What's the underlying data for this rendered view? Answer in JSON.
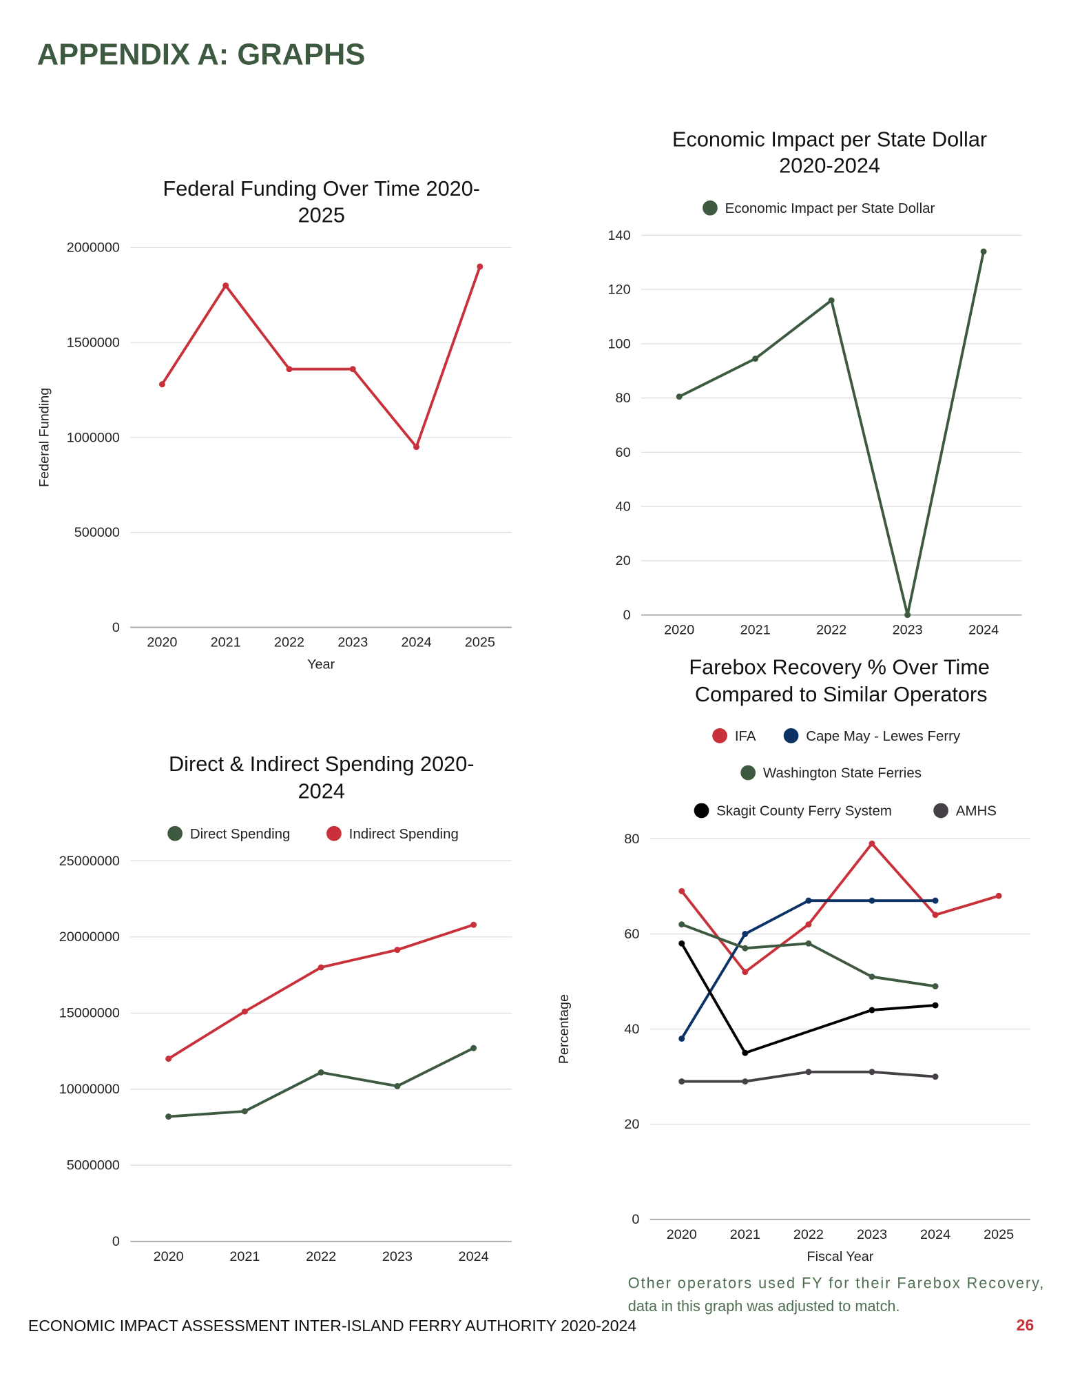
{
  "page": {
    "heading": "APPENDIX A: GRAPHS",
    "footer": "ECONOMIC IMPACT ASSESSMENT INTER-ISLAND FERRY AUTHORITY 2020-2024",
    "page_number": "26",
    "note_line1": "Other operators used FY for their Farebox Recovery,",
    "note_line2": "data in this graph was adjusted to match.",
    "heading_color": "#3d5a40",
    "page_number_color": "#c8313a"
  },
  "chart_data": [
    {
      "type": "line",
      "title_line1": "Federal Funding Over Time 2020-",
      "title_line2": "2025",
      "xlabel": "Year",
      "ylabel": "Federal Funding",
      "categories": [
        "2020",
        "2021",
        "2022",
        "2023",
        "2024",
        "2025"
      ],
      "ylim": [
        0,
        2000000
      ],
      "yticks": [
        "0",
        "500000",
        "1000000",
        "1500000",
        "2000000"
      ],
      "grid": true,
      "legend": "none",
      "series": [
        {
          "values": [
            1280000,
            1800000,
            1360000,
            1360000,
            950000,
            1900000
          ],
          "color": "#c8313a"
        }
      ]
    },
    {
      "type": "line",
      "title_line1": "Economic Impact per State Dollar",
      "title_line2": "2020-2024",
      "xlabel": "",
      "ylabel": "",
      "categories": [
        "2020",
        "2021",
        "2022",
        "2023",
        "2024"
      ],
      "ylim": [
        0,
        140
      ],
      "yticks": [
        "0",
        "20",
        "40",
        "60",
        "80",
        "100",
        "120",
        "140"
      ],
      "grid": true,
      "legend": "top",
      "series": [
        {
          "name": "Economic Impact per State Dollar",
          "values": [
            80.5,
            94.5,
            116,
            0,
            134
          ],
          "color": "#3d5a40"
        }
      ]
    },
    {
      "type": "line",
      "title_line1": "Direct & Indirect Spending 2020-",
      "title_line2": "2024",
      "xlabel": "",
      "ylabel": "",
      "categories": [
        "2020",
        "2021",
        "2022",
        "2023",
        "2024"
      ],
      "ylim": [
        0,
        25000000
      ],
      "yticks": [
        "0",
        "5000000",
        "10000000",
        "15000000",
        "20000000",
        "25000000"
      ],
      "grid": true,
      "legend": "top",
      "series": [
        {
          "name": "Direct Spending",
          "values": [
            8200000,
            8550000,
            11100000,
            10200000,
            12700000
          ],
          "color": "#3d5a40"
        },
        {
          "name": "Indirect Spending",
          "values": [
            12000000,
            15100000,
            18000000,
            19150000,
            20800000
          ],
          "color": "#c8313a"
        }
      ]
    },
    {
      "type": "line",
      "title_line1": "Farebox Recovery % Over Time",
      "title_line2": "Compared to Similar Operators",
      "xlabel": "Fiscal Year",
      "ylabel": "Percentage",
      "categories": [
        "2020",
        "2021",
        "2022",
        "2023",
        "2024",
        "2025"
      ],
      "ylim": [
        0,
        80
      ],
      "yticks": [
        "0",
        "20",
        "40",
        "60",
        "80"
      ],
      "grid": true,
      "legend": "top",
      "series": [
        {
          "name": "IFA",
          "values": [
            69,
            52,
            62,
            79,
            64,
            68
          ],
          "color": "#c8313a"
        },
        {
          "name": "Cape May - Lewes Ferry",
          "values": [
            38,
            60,
            67,
            67,
            67,
            null
          ],
          "color": "#0b3165"
        },
        {
          "name": "Washington State Ferries",
          "values": [
            62,
            57,
            58,
            51,
            49,
            null
          ],
          "color": "#3d5a40"
        },
        {
          "name": "Skagit County Ferry System",
          "values": [
            58,
            35,
            null,
            44,
            45,
            null
          ],
          "color": "#000000"
        },
        {
          "name": "AMHS",
          "values": [
            29,
            29,
            31,
            31,
            30,
            null
          ],
          "color": "#444046"
        }
      ]
    }
  ]
}
